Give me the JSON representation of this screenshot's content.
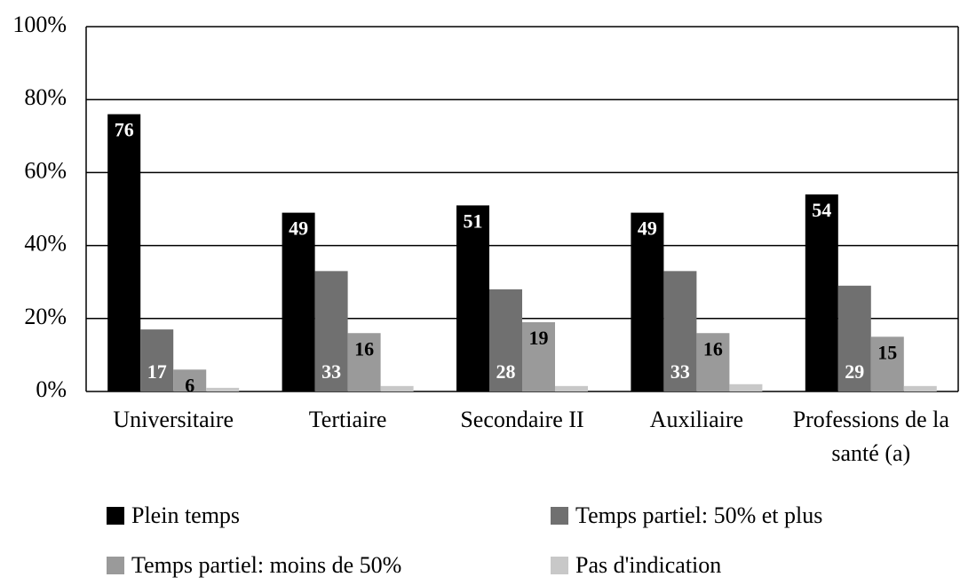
{
  "chart_data": {
    "type": "bar",
    "categories": [
      "Universitaire",
      "Tertiaire",
      "Secondaire II",
      "Auxiliaire",
      "Professions de la santé (a)"
    ],
    "series": [
      {
        "name": "Plein temps",
        "color": "#000000",
        "values": [
          76,
          49,
          51,
          49,
          54
        ]
      },
      {
        "name": "Temps partiel: 50% et plus",
        "color": "#707070",
        "values": [
          17,
          33,
          28,
          33,
          29
        ]
      },
      {
        "name": "Temps partiel: moins de 50%",
        "color": "#9a9a9a",
        "values": [
          6,
          16,
          19,
          16,
          15
        ]
      },
      {
        "name": "Pas d'indication",
        "color": "#c8c8c8",
        "values": [
          1,
          1.5,
          1.5,
          2,
          1.5
        ]
      }
    ],
    "ylim": [
      0,
      100
    ],
    "yticks": [
      {
        "value": 0,
        "label": "0%"
      },
      {
        "value": 20,
        "label": "20%"
      },
      {
        "value": 40,
        "label": "40%"
      },
      {
        "value": 60,
        "label": "60%"
      },
      {
        "value": 80,
        "label": "80%"
      },
      {
        "value": 100,
        "label": "100%"
      }
    ],
    "grid": true,
    "legend": "bottom"
  }
}
